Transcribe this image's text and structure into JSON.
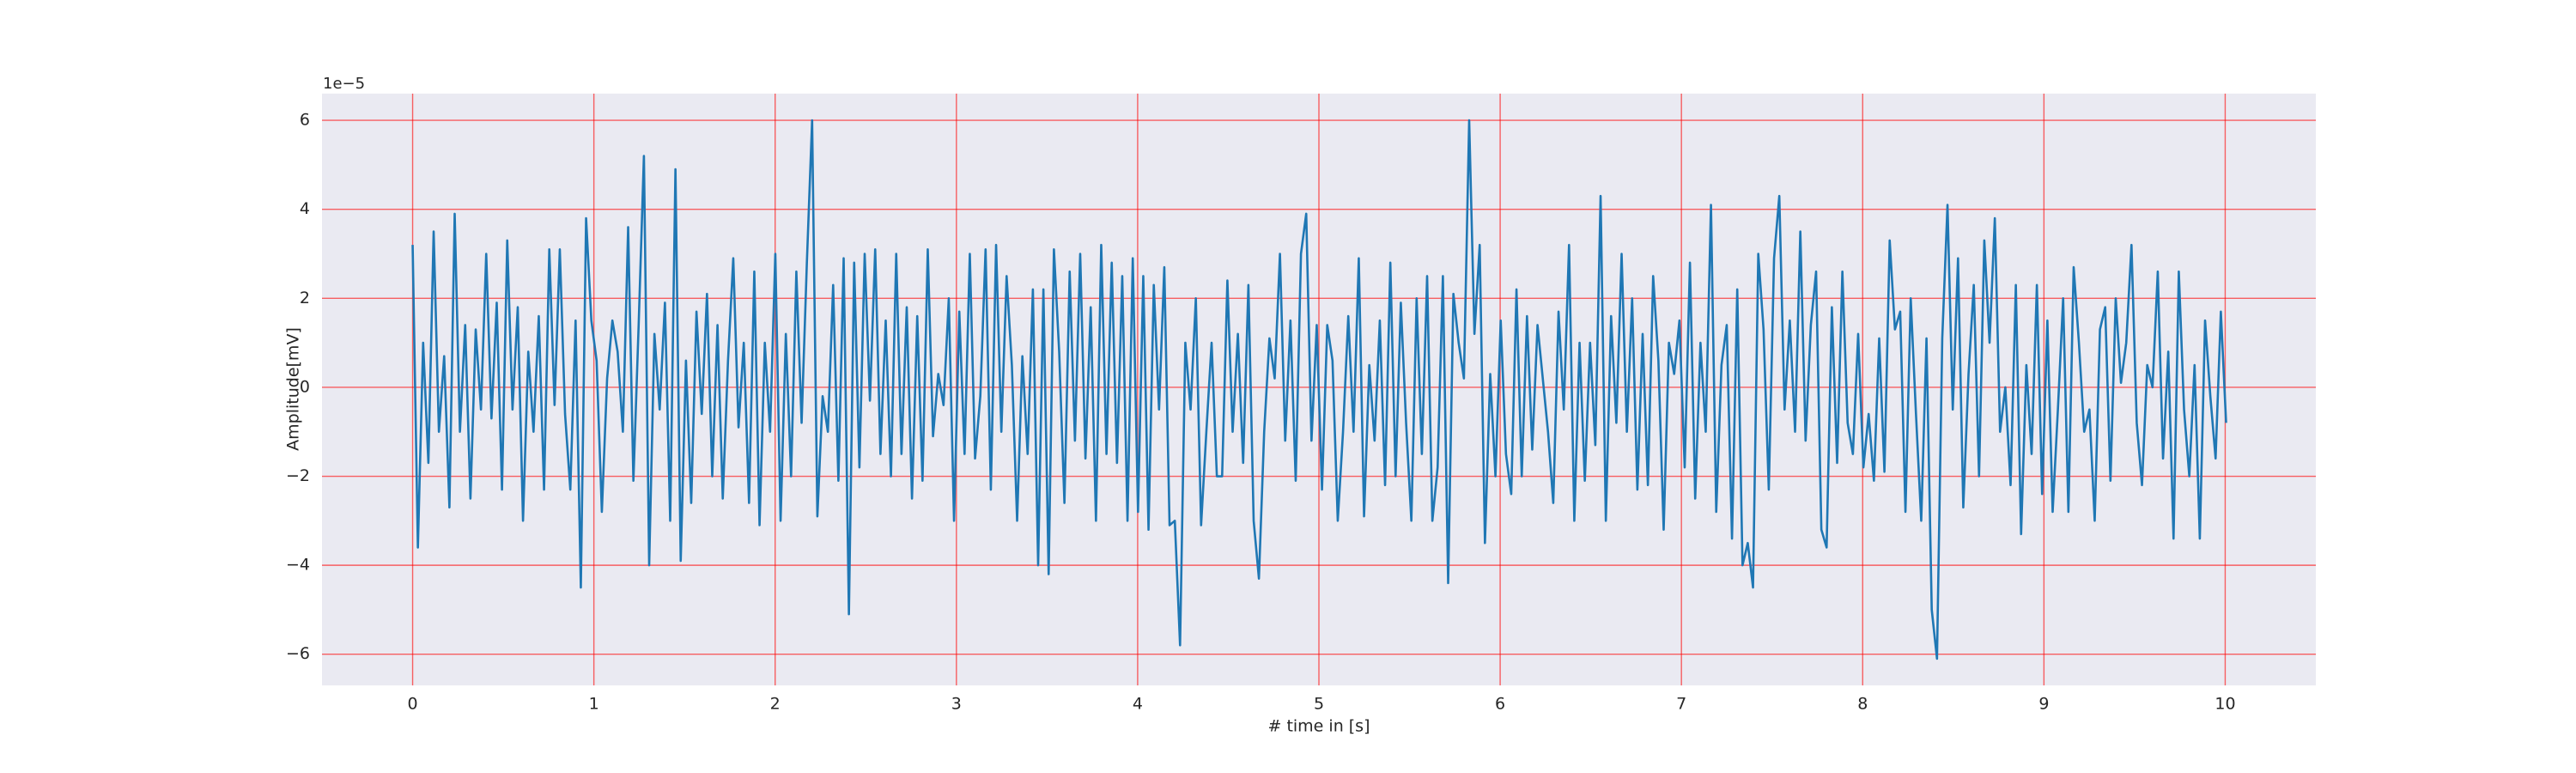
{
  "chart_data": {
    "type": "line",
    "xlabel": "# time in [s]",
    "ylabel": "Amplitude[mV]",
    "offset_label": "1e−5",
    "color": "#1f77b4",
    "grid": true,
    "grid_color": "#ff0000",
    "xlim": [
      -0.5,
      10.5
    ],
    "ylim": [
      -6.7,
      6.6
    ],
    "xticks": [
      0,
      1,
      2,
      3,
      4,
      5,
      6,
      7,
      8,
      9,
      10
    ],
    "yticks": [
      {
        "value": -6,
        "label": "−6"
      },
      {
        "value": -4,
        "label": "−4"
      },
      {
        "value": -2,
        "label": "−2"
      },
      0,
      2,
      4,
      6
    ],
    "x": [
      0,
      0.029,
      0.058,
      0.087,
      0.116,
      0.145,
      0.174,
      0.203,
      0.232,
      0.261,
      0.29,
      0.319,
      0.348,
      0.377,
      0.406,
      0.435,
      0.464,
      0.493,
      0.522,
      0.551,
      0.58,
      0.609,
      0.638,
      0.667,
      0.696,
      0.725,
      0.754,
      0.783,
      0.812,
      0.841,
      0.87,
      0.899,
      0.928,
      0.957,
      0.986,
      1.015,
      1.044,
      1.073,
      1.102,
      1.131,
      1.16,
      1.189,
      1.218,
      1.247,
      1.276,
      1.305,
      1.334,
      1.363,
      1.392,
      1.421,
      1.45,
      1.479,
      1.508,
      1.537,
      1.566,
      1.595,
      1.624,
      1.653,
      1.682,
      1.711,
      1.74,
      1.769,
      1.798,
      1.827,
      1.856,
      1.885,
      1.914,
      1.943,
      1.972,
      2.001,
      2.03,
      2.059,
      2.088,
      2.117,
      2.146,
      2.175,
      2.204,
      2.233,
      2.262,
      2.291,
      2.32,
      2.349,
      2.378,
      2.407,
      2.436,
      2.465,
      2.494,
      2.523,
      2.552,
      2.581,
      2.61,
      2.639,
      2.668,
      2.697,
      2.726,
      2.755,
      2.784,
      2.813,
      2.842,
      2.871,
      2.9,
      2.929,
      2.958,
      2.987,
      3.016,
      3.045,
      3.074,
      3.103,
      3.132,
      3.161,
      3.19,
      3.219,
      3.248,
      3.277,
      3.306,
      3.335,
      3.364,
      3.393,
      3.422,
      3.451,
      3.48,
      3.509,
      3.538,
      3.567,
      3.596,
      3.625,
      3.654,
      3.683,
      3.712,
      3.741,
      3.77,
      3.799,
      3.828,
      3.857,
      3.886,
      3.915,
      3.944,
      3.973,
      4.002,
      4.031,
      4.06,
      4.089,
      4.118,
      4.147,
      4.176,
      4.205,
      4.234,
      4.263,
      4.292,
      4.321,
      4.35,
      4.379,
      4.408,
      4.437,
      4.466,
      4.495,
      4.524,
      4.553,
      4.582,
      4.611,
      4.64,
      4.669,
      4.698,
      4.727,
      4.756,
      4.785,
      4.814,
      4.843,
      4.872,
      4.901,
      4.93,
      4.959,
      4.988,
      5.017,
      5.046,
      5.075,
      5.104,
      5.133,
      5.162,
      5.191,
      5.22,
      5.249,
      5.278,
      5.307,
      5.336,
      5.365,
      5.394,
      5.423,
      5.452,
      5.481,
      5.51,
      5.539,
      5.568,
      5.597,
      5.626,
      5.655,
      5.684,
      5.713,
      5.742,
      5.771,
      5.8,
      5.829,
      5.858,
      5.887,
      5.916,
      5.945,
      5.974,
      6.003,
      6.032,
      6.061,
      6.09,
      6.119,
      6.148,
      6.177,
      6.206,
      6.235,
      6.264,
      6.293,
      6.322,
      6.351,
      6.38,
      6.409,
      6.438,
      6.467,
      6.496,
      6.525,
      6.554,
      6.583,
      6.612,
      6.641,
      6.67,
      6.699,
      6.728,
      6.757,
      6.786,
      6.815,
      6.844,
      6.873,
      6.902,
      6.931,
      6.96,
      6.989,
      7.018,
      7.047,
      7.076,
      7.105,
      7.134,
      7.163,
      7.192,
      7.221,
      7.25,
      7.279,
      7.308,
      7.337,
      7.366,
      7.395,
      7.424,
      7.453,
      7.482,
      7.511,
      7.54,
      7.569,
      7.598,
      7.627,
      7.656,
      7.685,
      7.714,
      7.743,
      7.772,
      7.801,
      7.83,
      7.859,
      7.888,
      7.917,
      7.946,
      7.975,
      8.004,
      8.033,
      8.062,
      8.091,
      8.12,
      8.149,
      8.178,
      8.207,
      8.236,
      8.265,
      8.294,
      8.323,
      8.352,
      8.381,
      8.41,
      8.439,
      8.468,
      8.497,
      8.526,
      8.555,
      8.584,
      8.613,
      8.642,
      8.671,
      8.7,
      8.729,
      8.758,
      8.787,
      8.816,
      8.845,
      8.874,
      8.903,
      8.932,
      8.961,
      8.99,
      9.019,
      9.048,
      9.077,
      9.106,
      9.135,
      9.164,
      9.193,
      9.222,
      9.251,
      9.28,
      9.309,
      9.338,
      9.367,
      9.396,
      9.425,
      9.454,
      9.483,
      9.512,
      9.541,
      9.57,
      9.599,
      9.628,
      9.657,
      9.686,
      9.715,
      9.744,
      9.773,
      9.802,
      9.831,
      9.86,
      9.889,
      9.918,
      9.947,
      9.976,
      10.005
    ],
    "values": [
      3.2,
      -3.6,
      1.0,
      -1.7,
      3.5,
      -1.0,
      0.7,
      -2.7,
      3.9,
      -1.0,
      1.4,
      -2.5,
      1.3,
      -0.5,
      3.0,
      -0.7,
      1.9,
      -2.3,
      3.3,
      -0.5,
      1.8,
      -3.0,
      0.8,
      -1.0,
      1.6,
      -2.3,
      3.1,
      -0.4,
      3.1,
      -0.6,
      -2.3,
      1.5,
      -4.5,
      3.8,
      1.5,
      0.6,
      -2.8,
      0.2,
      1.5,
      0.8,
      -1.0,
      3.6,
      -2.1,
      1.4,
      5.2,
      -4.0,
      1.2,
      -0.5,
      1.9,
      -3.0,
      4.9,
      -3.9,
      0.6,
      -2.6,
      1.7,
      -0.6,
      2.1,
      -2.0,
      1.4,
      -2.5,
      0.6,
      2.9,
      -0.9,
      1.0,
      -2.6,
      2.6,
      -3.1,
      1.0,
      -1.0,
      3.0,
      -3.0,
      1.2,
      -2.0,
      2.6,
      -0.8,
      2.8,
      6.0,
      -2.9,
      -0.2,
      -1.0,
      2.3,
      -2.1,
      2.9,
      -5.1,
      2.8,
      -1.8,
      3.0,
      -0.3,
      3.1,
      -1.5,
      1.5,
      -2.0,
      3.0,
      -1.5,
      1.8,
      -2.5,
      1.6,
      -2.1,
      3.1,
      -1.1,
      0.3,
      -0.4,
      2.0,
      -3.0,
      1.7,
      -1.5,
      3.0,
      -1.6,
      -0.2,
      3.1,
      -2.3,
      3.2,
      -1.0,
      2.5,
      0.5,
      -3.0,
      0.7,
      -1.5,
      2.2,
      -4.0,
      2.2,
      -4.2,
      3.1,
      0.8,
      -2.6,
      2.6,
      -1.2,
      3.0,
      -1.6,
      1.8,
      -3.0,
      3.2,
      -1.5,
      2.8,
      -1.7,
      2.5,
      -3.0,
      2.9,
      -2.8,
      2.5,
      -3.2,
      2.3,
      -0.5,
      2.7,
      -3.1,
      -3.0,
      -5.8,
      1.0,
      -0.5,
      2.0,
      -3.1,
      -1.0,
      1.0,
      -2.0,
      -2.0,
      2.4,
      -1.0,
      1.2,
      -1.7,
      2.3,
      -3.0,
      -4.3,
      -1.0,
      1.1,
      0.2,
      3.0,
      -1.2,
      1.5,
      -2.1,
      3.0,
      3.9,
      -1.2,
      1.4,
      -2.3,
      1.4,
      0.6,
      -3.0,
      -1.0,
      1.6,
      -1.0,
      2.9,
      -2.9,
      0.5,
      -1.2,
      1.5,
      -2.2,
      2.8,
      -2.0,
      1.9,
      -0.8,
      -3.0,
      2.0,
      -1.5,
      2.5,
      -3.0,
      -1.8,
      2.5,
      -4.4,
      2.1,
      1.0,
      0.2,
      6.0,
      1.2,
      3.2,
      -3.5,
      0.3,
      -2.0,
      1.5,
      -1.5,
      -2.4,
      2.2,
      -2.0,
      1.6,
      -1.4,
      1.4,
      0.2,
      -1.0,
      -2.6,
      1.7,
      -0.5,
      3.2,
      -3.0,
      1.0,
      -2.1,
      1.0,
      -1.3,
      4.3,
      -3.0,
      1.6,
      -0.8,
      3.0,
      -1.0,
      2.0,
      -2.3,
      1.2,
      -2.2,
      2.5,
      0.6,
      -3.2,
      1.0,
      0.3,
      1.5,
      -1.8,
      2.8,
      -2.5,
      1.0,
      -1.0,
      4.1,
      -2.8,
      0.5,
      1.4,
      -3.4,
      2.2,
      -4.0,
      -3.5,
      -4.5,
      3.0,
      1.3,
      -2.3,
      2.9,
      4.3,
      -0.5,
      1.5,
      -1.0,
      3.5,
      -1.2,
      1.4,
      2.6,
      -3.2,
      -3.6,
      1.8,
      -1.7,
      2.6,
      -0.8,
      -1.5,
      1.2,
      -1.8,
      -0.6,
      -2.1,
      1.1,
      -1.9,
      3.3,
      1.3,
      1.7,
      -2.8,
      2.0,
      -0.6,
      -3.0,
      1.1,
      -5.0,
      -6.1,
      1.1,
      4.1,
      -0.5,
      2.9,
      -2.7,
      0.3,
      2.3,
      -2.0,
      3.3,
      1.0,
      3.8,
      -1.0,
      0.0,
      -2.2,
      2.3,
      -3.3,
      0.5,
      -1.5,
      2.3,
      -2.4,
      1.5,
      -2.8,
      -0.5,
      2.0,
      -2.8,
      2.7,
      1.0,
      -1.0,
      -0.5,
      -3.0,
      1.3,
      1.8,
      -2.1,
      2.0,
      0.1,
      1.0,
      3.2,
      -0.8,
      -2.2,
      0.5,
      0.0,
      2.6,
      -1.6,
      0.8,
      -3.4,
      2.6,
      -0.5,
      -2.0,
      0.5,
      -3.4,
      1.5,
      -0.2,
      -1.6,
      1.7,
      -0.8
    ]
  }
}
